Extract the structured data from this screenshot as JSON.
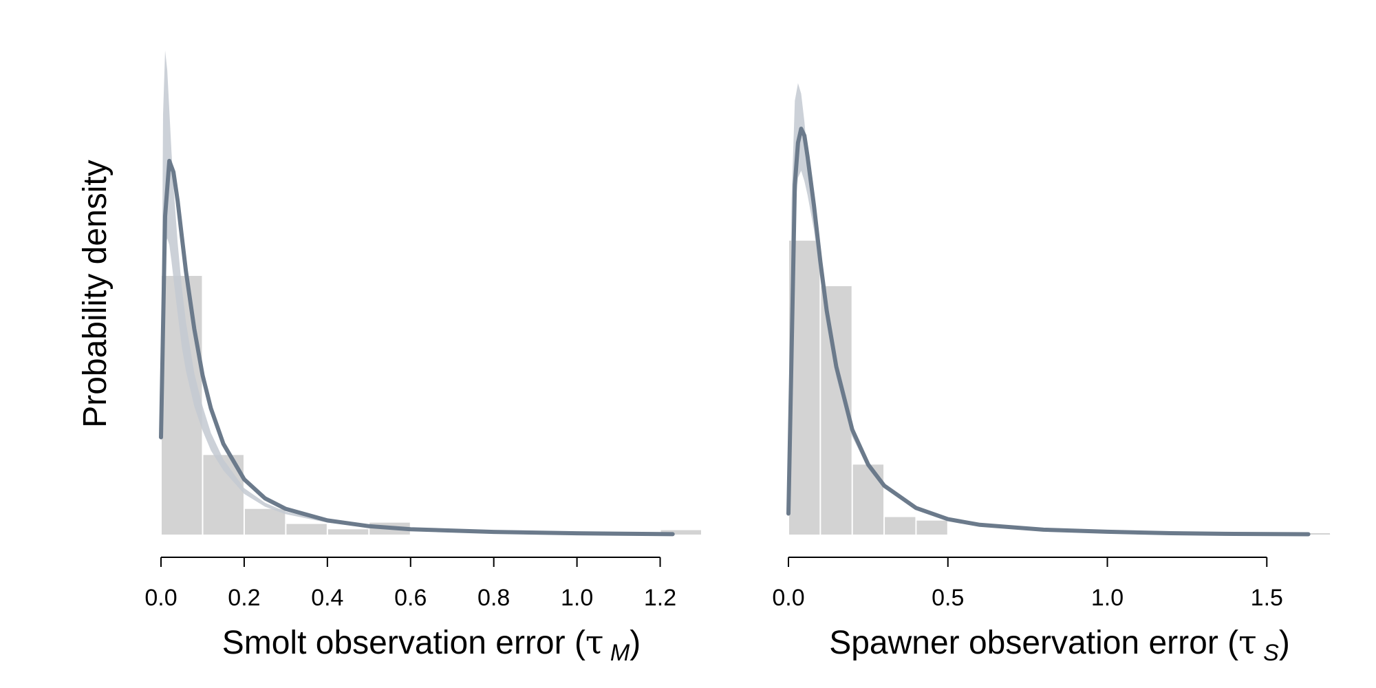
{
  "figure": {
    "ylabel": "Probability density"
  },
  "colors": {
    "histogram": "#d3d3d3",
    "curve": "#6b7a8b",
    "band": "#c3c9d1",
    "axis": "#000000"
  },
  "chart_data": [
    {
      "type": "area",
      "panel": "left",
      "xlabel_main": "Smolt observation error (",
      "xlabel_symbol": "τ",
      "xlabel_sub": "M",
      "xlabel_close": ")",
      "ylabel": "Probability density",
      "xlim": [
        0,
        1.3
      ],
      "xticks": [
        0.0,
        0.2,
        0.4,
        0.6,
        0.8,
        1.0,
        1.2
      ],
      "xtick_labels": [
        "0.0",
        "0.2",
        "0.4",
        "0.6",
        "0.8",
        "1.0",
        "1.2"
      ],
      "grid": false,
      "histogram": {
        "bin_edges": [
          0.0,
          0.1,
          0.2,
          0.3,
          0.4,
          0.5,
          0.6,
          1.2,
          1.3
        ],
        "densities": [
          5.85,
          1.8,
          0.58,
          0.24,
          0.12,
          0.27,
          0.0,
          0.1
        ]
      },
      "prior_curve": {
        "x": [
          0.0,
          0.01,
          0.02,
          0.03,
          0.04,
          0.05,
          0.06,
          0.08,
          0.1,
          0.12,
          0.15,
          0.2,
          0.25,
          0.3,
          0.4,
          0.5,
          0.6,
          0.8,
          1.0,
          1.23
        ],
        "y": [
          2.2,
          7.2,
          8.45,
          8.2,
          7.55,
          6.75,
          5.95,
          4.65,
          3.6,
          2.85,
          2.05,
          1.25,
          0.82,
          0.58,
          0.32,
          0.19,
          0.12,
          0.06,
          0.03,
          0.01
        ]
      },
      "band": {
        "x": [
          0.0,
          0.005,
          0.01,
          0.015,
          0.02,
          0.025,
          0.03,
          0.04,
          0.05,
          0.06,
          0.08,
          0.1,
          0.12,
          0.15,
          0.2,
          0.25,
          0.3,
          0.4,
          0.5,
          0.6,
          0.8,
          1.0,
          1.23
        ],
        "upper": [
          2.3,
          9.5,
          10.95,
          10.5,
          9.6,
          8.7,
          7.9,
          6.6,
          5.6,
          4.8,
          3.65,
          2.9,
          2.3,
          1.7,
          1.05,
          0.72,
          0.52,
          0.3,
          0.19,
          0.12,
          0.06,
          0.03,
          0.01
        ],
        "lower": [
          2.1,
          5.5,
          6.5,
          6.7,
          6.55,
          6.2,
          5.8,
          5.0,
          4.25,
          3.7,
          2.9,
          2.35,
          1.9,
          1.45,
          0.92,
          0.63,
          0.46,
          0.27,
          0.17,
          0.11,
          0.05,
          0.025,
          0.01
        ]
      }
    },
    {
      "type": "area",
      "panel": "right",
      "xlabel_main": "Spawner observation error (",
      "xlabel_symbol": "τ",
      "xlabel_sub": "S",
      "xlabel_close": ")",
      "ylabel": "",
      "xlim": [
        0,
        1.7
      ],
      "xticks": [
        0.0,
        0.5,
        1.0,
        1.5
      ],
      "xtick_labels": [
        "0.0",
        "0.5",
        "1.0",
        "1.5"
      ],
      "grid": false,
      "histogram": {
        "bin_edges": [
          0.0,
          0.1,
          0.2,
          0.3,
          0.4,
          0.5,
          1.6,
          1.7
        ],
        "densities": [
          4.2,
          3.55,
          1.0,
          0.25,
          0.2,
          0.0,
          0.02
        ]
      },
      "prior_curve": {
        "x": [
          0.0,
          0.02,
          0.03,
          0.04,
          0.05,
          0.06,
          0.08,
          0.1,
          0.12,
          0.15,
          0.2,
          0.25,
          0.3,
          0.4,
          0.5,
          0.6,
          0.8,
          1.0,
          1.2,
          1.4,
          1.63
        ],
        "y": [
          0.3,
          5.0,
          5.6,
          5.8,
          5.7,
          5.4,
          4.7,
          3.9,
          3.2,
          2.4,
          1.5,
          1.0,
          0.7,
          0.38,
          0.22,
          0.14,
          0.07,
          0.04,
          0.02,
          0.01,
          0.005
        ]
      },
      "band": {
        "x": [
          0.0,
          0.01,
          0.02,
          0.03,
          0.04,
          0.05,
          0.06,
          0.08,
          0.1,
          0.12,
          0.15,
          0.2,
          0.25,
          0.3,
          0.4,
          0.5,
          0.6,
          0.8,
          1.0,
          1.2,
          1.4,
          1.63,
          1.7
        ],
        "upper": [
          0.35,
          4.8,
          6.2,
          6.45,
          6.3,
          5.9,
          5.4,
          4.55,
          3.75,
          3.05,
          2.3,
          1.45,
          0.98,
          0.7,
          0.38,
          0.22,
          0.14,
          0.07,
          0.04,
          0.02,
          0.01,
          0.005,
          0.005
        ],
        "lower": [
          0.25,
          3.2,
          4.6,
          5.1,
          5.2,
          5.05,
          4.85,
          4.35,
          3.65,
          3.0,
          2.25,
          1.4,
          0.94,
          0.66,
          0.36,
          0.2,
          0.13,
          0.065,
          0.035,
          0.018,
          0.009,
          0.004,
          0.004
        ]
      }
    }
  ]
}
